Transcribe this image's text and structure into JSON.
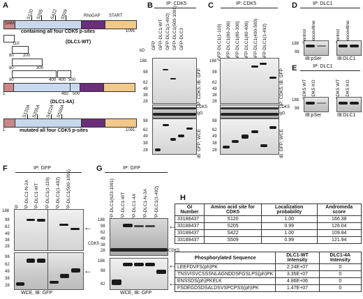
{
  "panel_a": {
    "letter": "A",
    "domains": {
      "sam": "SAM",
      "rhogap": "RhoGAP",
      "start": "START"
    },
    "sites_wt": [
      "S120",
      "S205",
      "S422",
      "S509"
    ],
    "sites_4a": [
      "S120A",
      "S205A",
      "S422A",
      "S509A"
    ],
    "wt_caption": "containing all four CDK5 p-sites",
    "wt_name": "(DLC1-WT)",
    "mut_name": "(DLC1-4A)",
    "mut_caption": "mutated all four CDK5 p-sites",
    "n_start": "1",
    "n_end": "1091",
    "fragment_numbers": {
      "n110": "110",
      "n80a": "80",
      "n200": "200",
      "n80b": "80",
      "n300": "300",
      "n80c": "80",
      "n400": "400",
      "n400b": "400",
      "n500": "500",
      "n1": "1",
      "n492": "492",
      "n500b": "500"
    },
    "bottom_start": "1",
    "bottom_end": "1091"
  },
  "panel_b": {
    "letter": "B",
    "ip": "IP: CDK5",
    "lanes": [
      "GFP",
      "GFP-DLC1-WT",
      "GFP-DLC1(1-492)",
      "GFP-DLC1(500-1091)",
      "GFP-DLC3"
    ],
    "kd": "kD",
    "mw": [
      "188",
      "98",
      "62",
      "49",
      "38",
      "28"
    ],
    "mw2": [
      "98",
      "62",
      "49",
      "38",
      "28"
    ],
    "side1": "IP: CDK5; IB: GFP",
    "side2": "CDK5",
    "side3": "IgG",
    "side4": "IB: GFP; WCE"
  },
  "panel_c": {
    "letter": "C",
    "ip": "IP: CDK5",
    "lanes": [
      "GFP-DLC1(1-110)",
      "GFP-DLC1(80-200)",
      "GFP-DLC1(80-300)",
      "GFP-DLC1(80-400)",
      "GFP-DLC1(400-500)",
      "GFP-DLC1(1-492)"
    ],
    "mw": [
      "188",
      "98",
      "62",
      "49",
      "38",
      "28"
    ],
    "mw2": [
      "98",
      "62",
      "49",
      "38",
      "28"
    ],
    "side1": "IP: CDK5; IB: GFP",
    "side2": "CDK5",
    "side3": "IgG",
    "side4": "IB: GFP; WCE"
  },
  "panel_d": {
    "letter": "D",
    "ip": "IP: DLC1",
    "lanes": [
      "Control",
      "Roscovitine",
      "Control",
      "Roscovitine"
    ],
    "mw": [
      "188",
      "98"
    ],
    "ib1": "IB:pSer",
    "ib2": "IB:DLC1"
  },
  "panel_e": {
    "letter": "E",
    "ip": "IP: DLC1",
    "lanes": [
      "CDK5 WT",
      "CDK5 KO",
      "CDK5 WT",
      "CDK5 KO"
    ],
    "mw": [
      "188",
      "98"
    ],
    "ib1": "IB:pSer",
    "ib2": "IB:DLC1"
  },
  "panel_f": {
    "letter": "F",
    "ip": "IP: GFP",
    "lanes": [
      "GFP",
      "GFP-DLC1-N-2A",
      "GFP-DLC1-WT",
      "GFP-DLC1(1-110)",
      "GFP-DLC1(1-492)",
      "GFP-DLC1(500-1091)"
    ],
    "mw": [
      "188",
      "98",
      "62",
      "49",
      "38",
      "28"
    ],
    "mw2": [
      "98",
      "62",
      "49",
      "38",
      "28"
    ],
    "cdk5": "CDK5",
    "foot": "WCE, IB: GFP"
  },
  "panel_g": {
    "letter": "G",
    "ip": "IP: GFP",
    "lanes": [
      "GFP-DLC1(623-1091)",
      "GFP-DLC1-WT",
      "GFP-DLC1-4A",
      "GFP-DLC1-N-3A",
      "GFP-DLC1(1-492)"
    ],
    "mw": [
      "188",
      "98",
      "62",
      "49",
      "38",
      "28"
    ],
    "mw2": [
      "188",
      "98",
      "62"
    ],
    "cdk5": "CDK5",
    "foot": "WCE, IB: GFP"
  },
  "panel_h": {
    "letter": "H",
    "head": [
      "GI Number",
      "Amino acid site for CDK5",
      "Localization probability",
      "Andromeda score"
    ],
    "rows": [
      [
        "33188437",
        "S120",
        "1.00",
        "166.38"
      ],
      [
        "33188437",
        "S205",
        "0.99",
        "126.04"
      ],
      [
        "33188437",
        "S422",
        "1.00",
        "109.84"
      ],
      [
        "33188437",
        "S509",
        "0.99",
        "121.94"
      ]
    ],
    "head2": [
      "Phosphorylated Sequence",
      "DLC1-WT Intensity",
      "DLC1-4A Intensity"
    ],
    "rows2": [
      [
        "LEEFDVFS(ph)PK",
        "2.24E+07",
        "0"
      ],
      [
        "TNSVISVCSSSNLAGNDDSFGSLPS(ph)PK",
        "3.35E+07",
        "0"
      ],
      [
        "ENSSDS(ph)PKELK",
        "4.86E+06",
        "0"
      ],
      [
        "FSDEGDSDSALDSVSPCPSS(ph)PK",
        "1.47E+07",
        "0"
      ]
    ]
  }
}
